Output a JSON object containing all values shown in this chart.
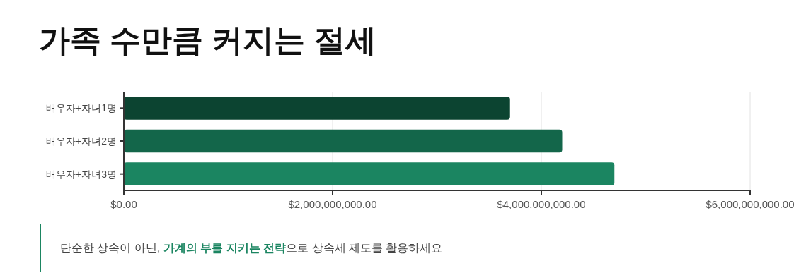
{
  "chart_data": {
    "type": "bar",
    "orientation": "horizontal",
    "title": "가족 수만큼 커지는 절세",
    "categories": [
      "배우자+자녀1명",
      "배우자+자녀2명",
      "배우자+자녀3명"
    ],
    "values": [
      3700000000,
      4200000000,
      4700000000
    ],
    "colors": [
      "#0c4431",
      "#13664a",
      "#1b8561"
    ],
    "xlim": [
      0,
      6000000000
    ],
    "xticks": [
      {
        "value": 0,
        "label": "$0.00"
      },
      {
        "value": 2000000000,
        "label": "$2,000,000,000.00"
      },
      {
        "value": 4000000000,
        "label": "$4,000,000,000.00"
      },
      {
        "value": 6000000000,
        "label": "$6,000,000,000.00"
      }
    ],
    "grid": "x",
    "annotations": [
      "단순한 상속이 아닌, **가계의 부를 지키는 전략**으로 상속세 제도를 활용하세요"
    ]
  }
}
